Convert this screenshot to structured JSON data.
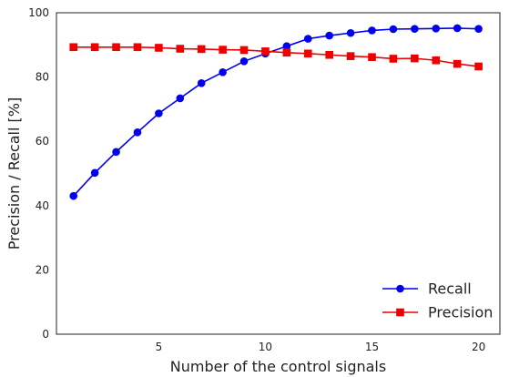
{
  "chart_data": {
    "type": "line",
    "title": "",
    "xlabel": "Number of the control signals",
    "ylabel": "Precision / Recall [%]",
    "xlim": [
      0.2,
      21.0
    ],
    "ylim": [
      0,
      100
    ],
    "xticks": [
      5,
      10,
      15,
      20
    ],
    "yticks": [
      0,
      20,
      40,
      60,
      80,
      100
    ],
    "grid": false,
    "legend": "lower-right",
    "x": [
      1,
      2,
      3,
      4,
      5,
      6,
      7,
      8,
      9,
      10,
      11,
      12,
      13,
      14,
      15,
      16,
      17,
      18,
      19,
      20
    ],
    "series": [
      {
        "name": "Recall",
        "color": "#0000ee",
        "marker": "circle",
        "values": [
          43.0,
          50.2,
          56.7,
          62.8,
          68.7,
          73.4,
          78.1,
          81.5,
          84.9,
          87.3,
          89.6,
          91.9,
          92.9,
          93.7,
          94.5,
          94.9,
          95.0,
          95.1,
          95.2,
          95.0
        ]
      },
      {
        "name": "Precision",
        "color": "#ee0000",
        "marker": "square",
        "values": [
          89.3,
          89.3,
          89.3,
          89.3,
          89.1,
          88.8,
          88.7,
          88.5,
          88.4,
          88.0,
          87.6,
          87.3,
          86.9,
          86.5,
          86.2,
          85.7,
          85.8,
          85.2,
          84.1,
          83.3
        ]
      }
    ]
  }
}
